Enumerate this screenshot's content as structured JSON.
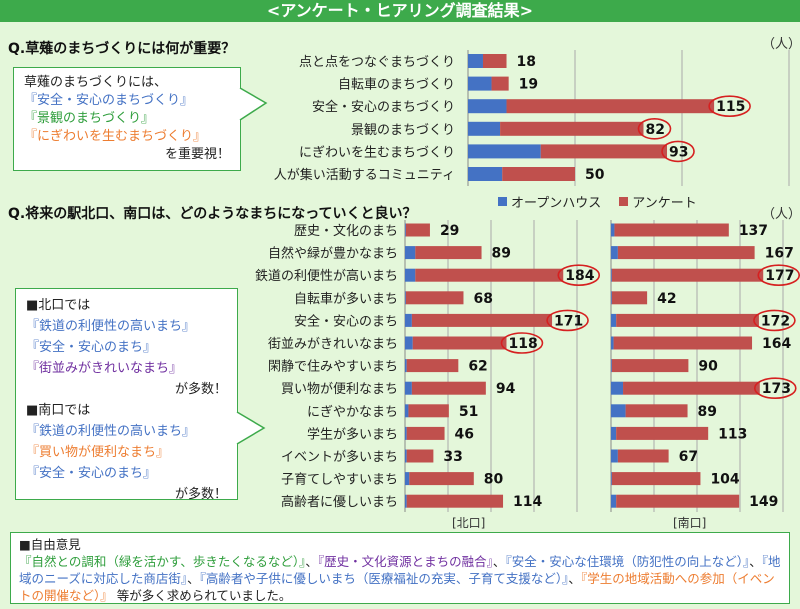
{
  "title": "<アンケート・ヒアリング調査結果>",
  "colors": {
    "open_house": "#4472c4",
    "survey": "#c0504d",
    "banner": "#3daa4b",
    "highlight_circle": "#d62020"
  },
  "q1": {
    "question": "Q.草薙のまちづくりには何が重要？",
    "unit": "（人）",
    "callout": {
      "line1": "草薙のまちづくりには、",
      "item1": "『安全・安心のまちづくり』",
      "item2": "『景観のまちづくり』",
      "item3": "『にぎわいを生むまちづくり』",
      "tail": "を重要視！"
    }
  },
  "legend": {
    "open_house": "オープンハウス",
    "survey": "アンケート"
  },
  "q2": {
    "question": "Q.将来の駅北口、南口は、どのようなまちになっていくと良い？",
    "unit": "（人）",
    "north_label": "[北口]",
    "south_label": "[南口]",
    "callout": {
      "north_head": "■北口では",
      "north_items": [
        "『鉄道の利便性の高いまち』",
        "『安全・安心のまち』",
        "『街並みがきれいなまち』"
      ],
      "north_tail": "が多数！",
      "south_head": "■南口では",
      "south_items": [
        "『鉄道の利便性の高いまち』",
        "『買い物が便利なまち』",
        "『安全・安心のまち』"
      ],
      "south_tail": "が多数！"
    }
  },
  "free": {
    "heading": "■自由意見",
    "parts": [
      {
        "text": "『自然との調和（緑を活かす、歩きたくなるなど）』",
        "color": "green"
      },
      {
        "text": "、",
        "color": "black"
      },
      {
        "text": "『歴史・文化資源とまちの融合』",
        "color": "purple"
      },
      {
        "text": "、",
        "color": "black"
      },
      {
        "text": "『安全・安心な住環境（防犯性の向上など）』",
        "color": "blue"
      },
      {
        "text": "、",
        "color": "black"
      },
      {
        "text": "『地域のニーズに対応した商店街』",
        "color": "blue"
      },
      {
        "text": "、",
        "color": "black"
      },
      {
        "text": "『高齢者や子供に優しいまち（医療福祉の充実、子育て支援など）』",
        "color": "blue"
      },
      {
        "text": "、",
        "color": "black"
      },
      {
        "text": "『学生の地域活動への参加（イベントの開催など）』",
        "color": "orange"
      },
      {
        "text": " 等が多く求められていました。",
        "color": "black"
      }
    ]
  },
  "chart_data": [
    {
      "type": "bar",
      "orientation": "horizontal",
      "stacked": true,
      "title": "Q.草薙のまちづくりには何が重要？",
      "unit": "（人）",
      "xlim": [
        0,
        150
      ],
      "grid": true,
      "legend": "bottom",
      "categories": [
        "点と点をつなぐまちづくり",
        "自転車のまちづくり",
        "安全・安心のまちづくり",
        "景観のまちづくり",
        "にぎわいを生むまちづくり",
        "人が集い活動するコミュニティ"
      ],
      "series": [
        {
          "name": "オープンハウス",
          "values": [
            7,
            11,
            18,
            15,
            34,
            16
          ]
        },
        {
          "name": "アンケート",
          "values": [
            11,
            8,
            97,
            67,
            59,
            34
          ]
        }
      ],
      "totals": [
        18,
        19,
        115,
        82,
        93,
        50
      ],
      "highlighted": [
        false,
        false,
        true,
        true,
        true,
        false
      ]
    },
    {
      "type": "bar",
      "orientation": "horizontal",
      "stacked": true,
      "title": "[北口]",
      "xlim": [
        0,
        200
      ],
      "grid": true,
      "categories": [
        "歴史・文化のまち",
        "自然や緑が豊かなまち",
        "鉄道の利便性が高いまち",
        "自転車が多いまち",
        "安全・安心のまち",
        "街並みがきれいなまち",
        "閑静で住みやすいまち",
        "買い物が便利なまち",
        "にぎやかなまち",
        "学生が多いまち",
        "イベントが多いまち",
        "子育てしやすいまち",
        "高齢者に優しいまち"
      ],
      "series": [
        {
          "name": "オープンハウス",
          "values": [
            1,
            12,
            12,
            1,
            8,
            9,
            2,
            8,
            4,
            2,
            2,
            5,
            2
          ]
        },
        {
          "name": "アンケート",
          "values": [
            28,
            77,
            172,
            67,
            163,
            109,
            60,
            86,
            47,
            44,
            31,
            75,
            112
          ]
        }
      ],
      "totals": [
        29,
        89,
        184,
        68,
        171,
        118,
        62,
        94,
        51,
        46,
        33,
        80,
        114
      ],
      "highlighted": [
        false,
        false,
        true,
        false,
        true,
        true,
        false,
        false,
        false,
        false,
        false,
        false,
        false
      ]
    },
    {
      "type": "bar",
      "orientation": "horizontal",
      "stacked": true,
      "title": "[南口]",
      "xlim": [
        0,
        200
      ],
      "grid": true,
      "categories": [
        "歴史・文化のまち",
        "自然や緑が豊かなまち",
        "鉄道の利便性が高いまち",
        "自転車が多いまち",
        "安全・安心のまち",
        "街並みがきれいなまち",
        "閑静で住みやすいまち",
        "買い物が便利なまち",
        "にぎやかなまち",
        "学生が多いまち",
        "イベントが多いまち",
        "子育てしやすいまち",
        "高齢者に優しいまち"
      ],
      "series": [
        {
          "name": "オープンハウス",
          "values": [
            4,
            8,
            1,
            1,
            6,
            3,
            1,
            14,
            17,
            6,
            8,
            1,
            6
          ]
        },
        {
          "name": "アンケート",
          "values": [
            133,
            159,
            176,
            41,
            166,
            161,
            89,
            159,
            72,
            107,
            59,
            103,
            143
          ]
        }
      ],
      "totals": [
        137,
        167,
        177,
        42,
        172,
        164,
        90,
        173,
        89,
        113,
        67,
        104,
        149
      ],
      "highlighted": [
        false,
        false,
        true,
        false,
        true,
        false,
        false,
        true,
        false,
        false,
        false,
        false,
        false
      ]
    }
  ]
}
